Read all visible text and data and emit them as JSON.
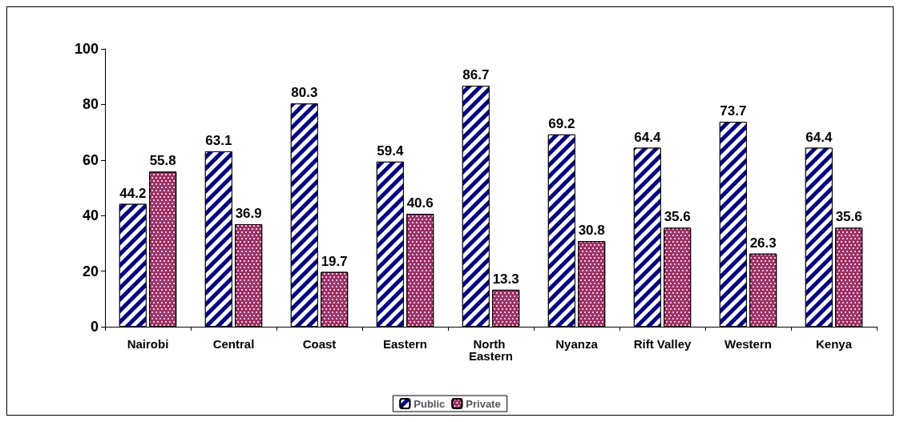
{
  "chart_data": {
    "type": "bar",
    "categories": [
      "Nairobi",
      "Central",
      "Coast",
      "Eastern",
      "North Eastern",
      "Nyanza",
      "Rift Valley",
      "Western",
      "Kenya"
    ],
    "series": [
      {
        "name": "Public",
        "color": "#000080",
        "values": [
          44.2,
          63.1,
          80.3,
          59.4,
          86.7,
          69.2,
          64.4,
          73.7,
          64.4
        ]
      },
      {
        "name": "Private",
        "color": "#993366",
        "values": [
          55.8,
          36.9,
          19.7,
          40.6,
          13.3,
          30.8,
          35.6,
          26.3,
          35.6
        ]
      }
    ],
    "ylim": [
      0,
      100
    ],
    "yticks": [
      0,
      20,
      40,
      60,
      80,
      100
    ],
    "grid": false,
    "legend": "bottom",
    "data_labels": true
  }
}
